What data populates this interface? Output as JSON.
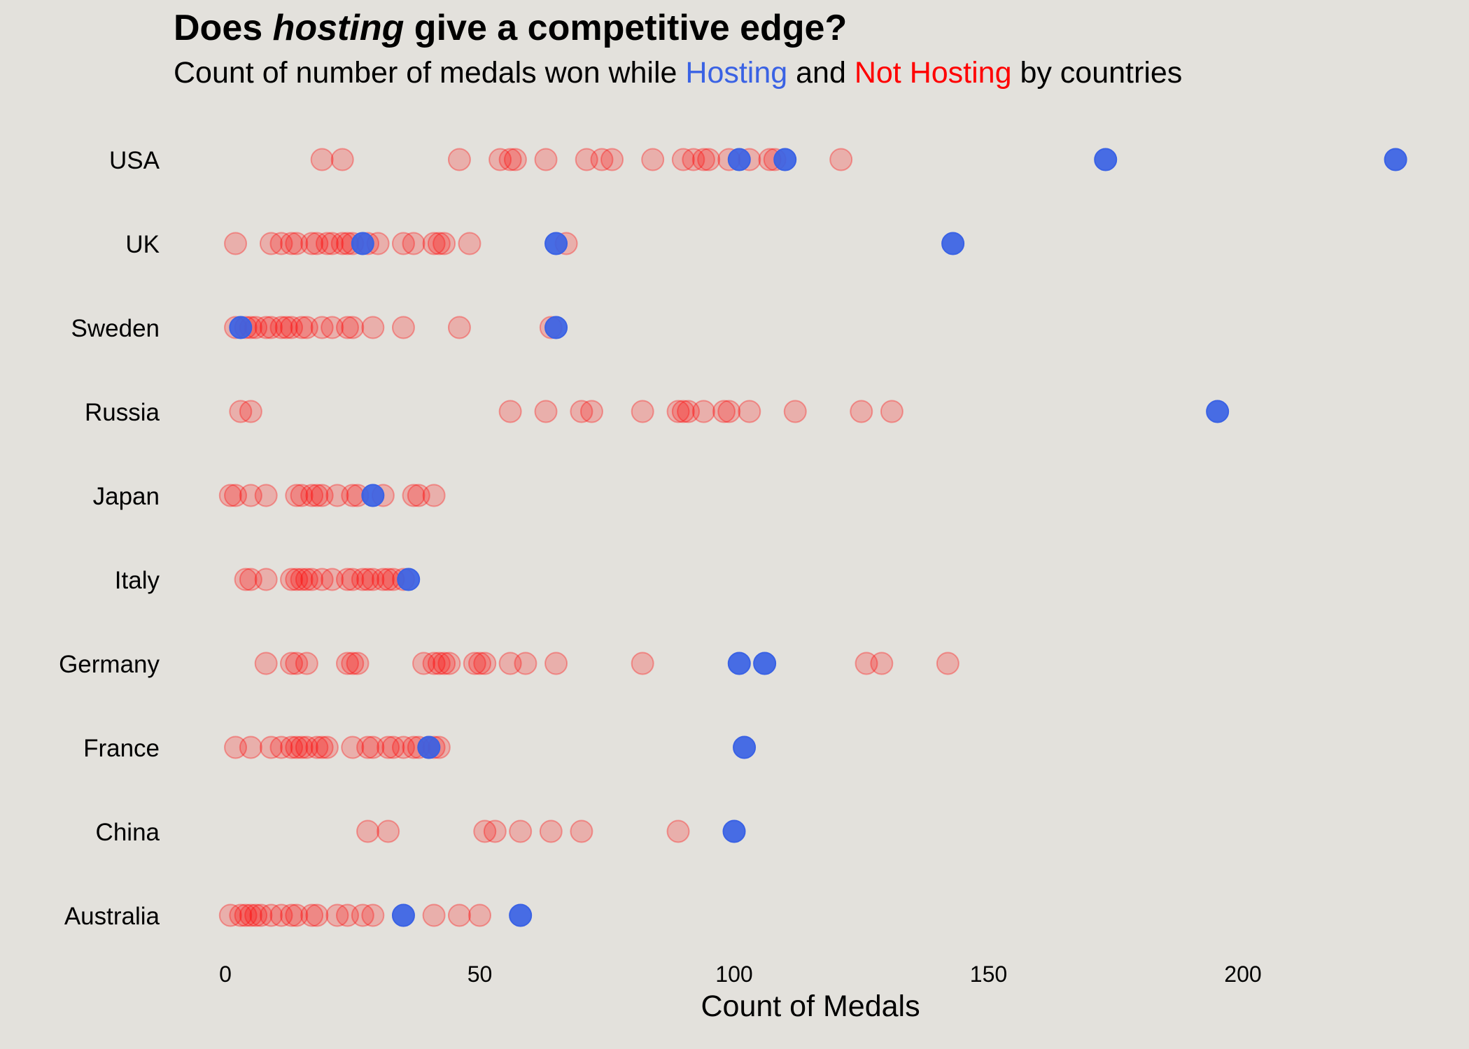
{
  "title": {
    "pre": "Does ",
    "em": "hosting",
    "post": " give a competitive edge?"
  },
  "subtitle": {
    "pre": "Count of number of medals won while ",
    "hosting": "Hosting",
    "mid": " and ",
    "not_hosting": "Not Hosting",
    "post": " by countries"
  },
  "colors": {
    "background": "#e3e1dc",
    "hosting": "#3a62e4",
    "not_hosting": "#ff0000",
    "text": "#000000"
  },
  "chart_data": {
    "type": "scatter",
    "xlabel": "Count of Medals",
    "ylabel": "",
    "xlim": [
      -10,
      240
    ],
    "xticks": [
      0,
      50,
      100,
      150,
      200
    ],
    "grid": false,
    "categories": [
      "USA",
      "UK",
      "Sweden",
      "Russia",
      "Japan",
      "Italy",
      "Germany",
      "France",
      "China",
      "Australia"
    ],
    "series": [
      {
        "name": "Not Hosting",
        "color": "#ff0000",
        "opacity": 0.22,
        "points": {
          "USA": [
            19,
            23,
            46,
            54,
            56,
            57,
            63,
            71,
            74,
            76,
            84,
            90,
            92,
            94,
            95,
            99,
            103,
            107,
            108,
            121
          ],
          "UK": [
            2,
            9,
            11,
            13,
            14,
            17,
            18,
            20,
            21,
            23,
            24,
            25,
            28,
            30,
            35,
            37,
            41,
            42,
            43,
            48,
            67
          ],
          "Sweden": [
            2,
            4,
            5,
            6,
            8,
            9,
            11,
            12,
            13,
            15,
            16,
            19,
            21,
            24,
            25,
            29,
            35,
            46,
            64
          ],
          "Russia": [
            3,
            5,
            56,
            63,
            70,
            72,
            82,
            89,
            90,
            91,
            94,
            98,
            99,
            103,
            112,
            125,
            131
          ],
          "Japan": [
            1,
            2,
            5,
            8,
            14,
            15,
            17,
            18,
            19,
            22,
            25,
            26,
            31,
            37,
            38,
            41
          ],
          "Italy": [
            4,
            5,
            8,
            13,
            14,
            15,
            16,
            17,
            19,
            21,
            24,
            25,
            27,
            28,
            29,
            31,
            32,
            33,
            35
          ],
          "Germany": [
            8,
            13,
            14,
            16,
            24,
            25,
            26,
            39,
            41,
            42,
            43,
            44,
            49,
            50,
            51,
            56,
            59,
            65,
            82,
            126,
            129,
            142
          ],
          "France": [
            2,
            5,
            9,
            11,
            13,
            14,
            15,
            16,
            18,
            19,
            20,
            25,
            28,
            29,
            32,
            33,
            35,
            37,
            38,
            40,
            41,
            42
          ],
          "China": [
            28,
            32,
            51,
            53,
            58,
            64,
            70,
            89
          ],
          "Australia": [
            1,
            3,
            4,
            5,
            6,
            7,
            9,
            11,
            13,
            14,
            17,
            18,
            22,
            24,
            27,
            29,
            41,
            46,
            50
          ]
        }
      },
      {
        "name": "Hosting",
        "color": "#3a62e4",
        "opacity": 0.92,
        "points": {
          "USA": [
            101,
            110,
            173,
            230
          ],
          "UK": [
            27,
            65,
            143
          ],
          "Sweden": [
            3,
            65
          ],
          "Russia": [
            195
          ],
          "Japan": [
            29
          ],
          "Italy": [
            36
          ],
          "Germany": [
            101,
            106
          ],
          "France": [
            40,
            102
          ],
          "China": [
            100
          ],
          "Australia": [
            35,
            58
          ]
        }
      }
    ]
  }
}
